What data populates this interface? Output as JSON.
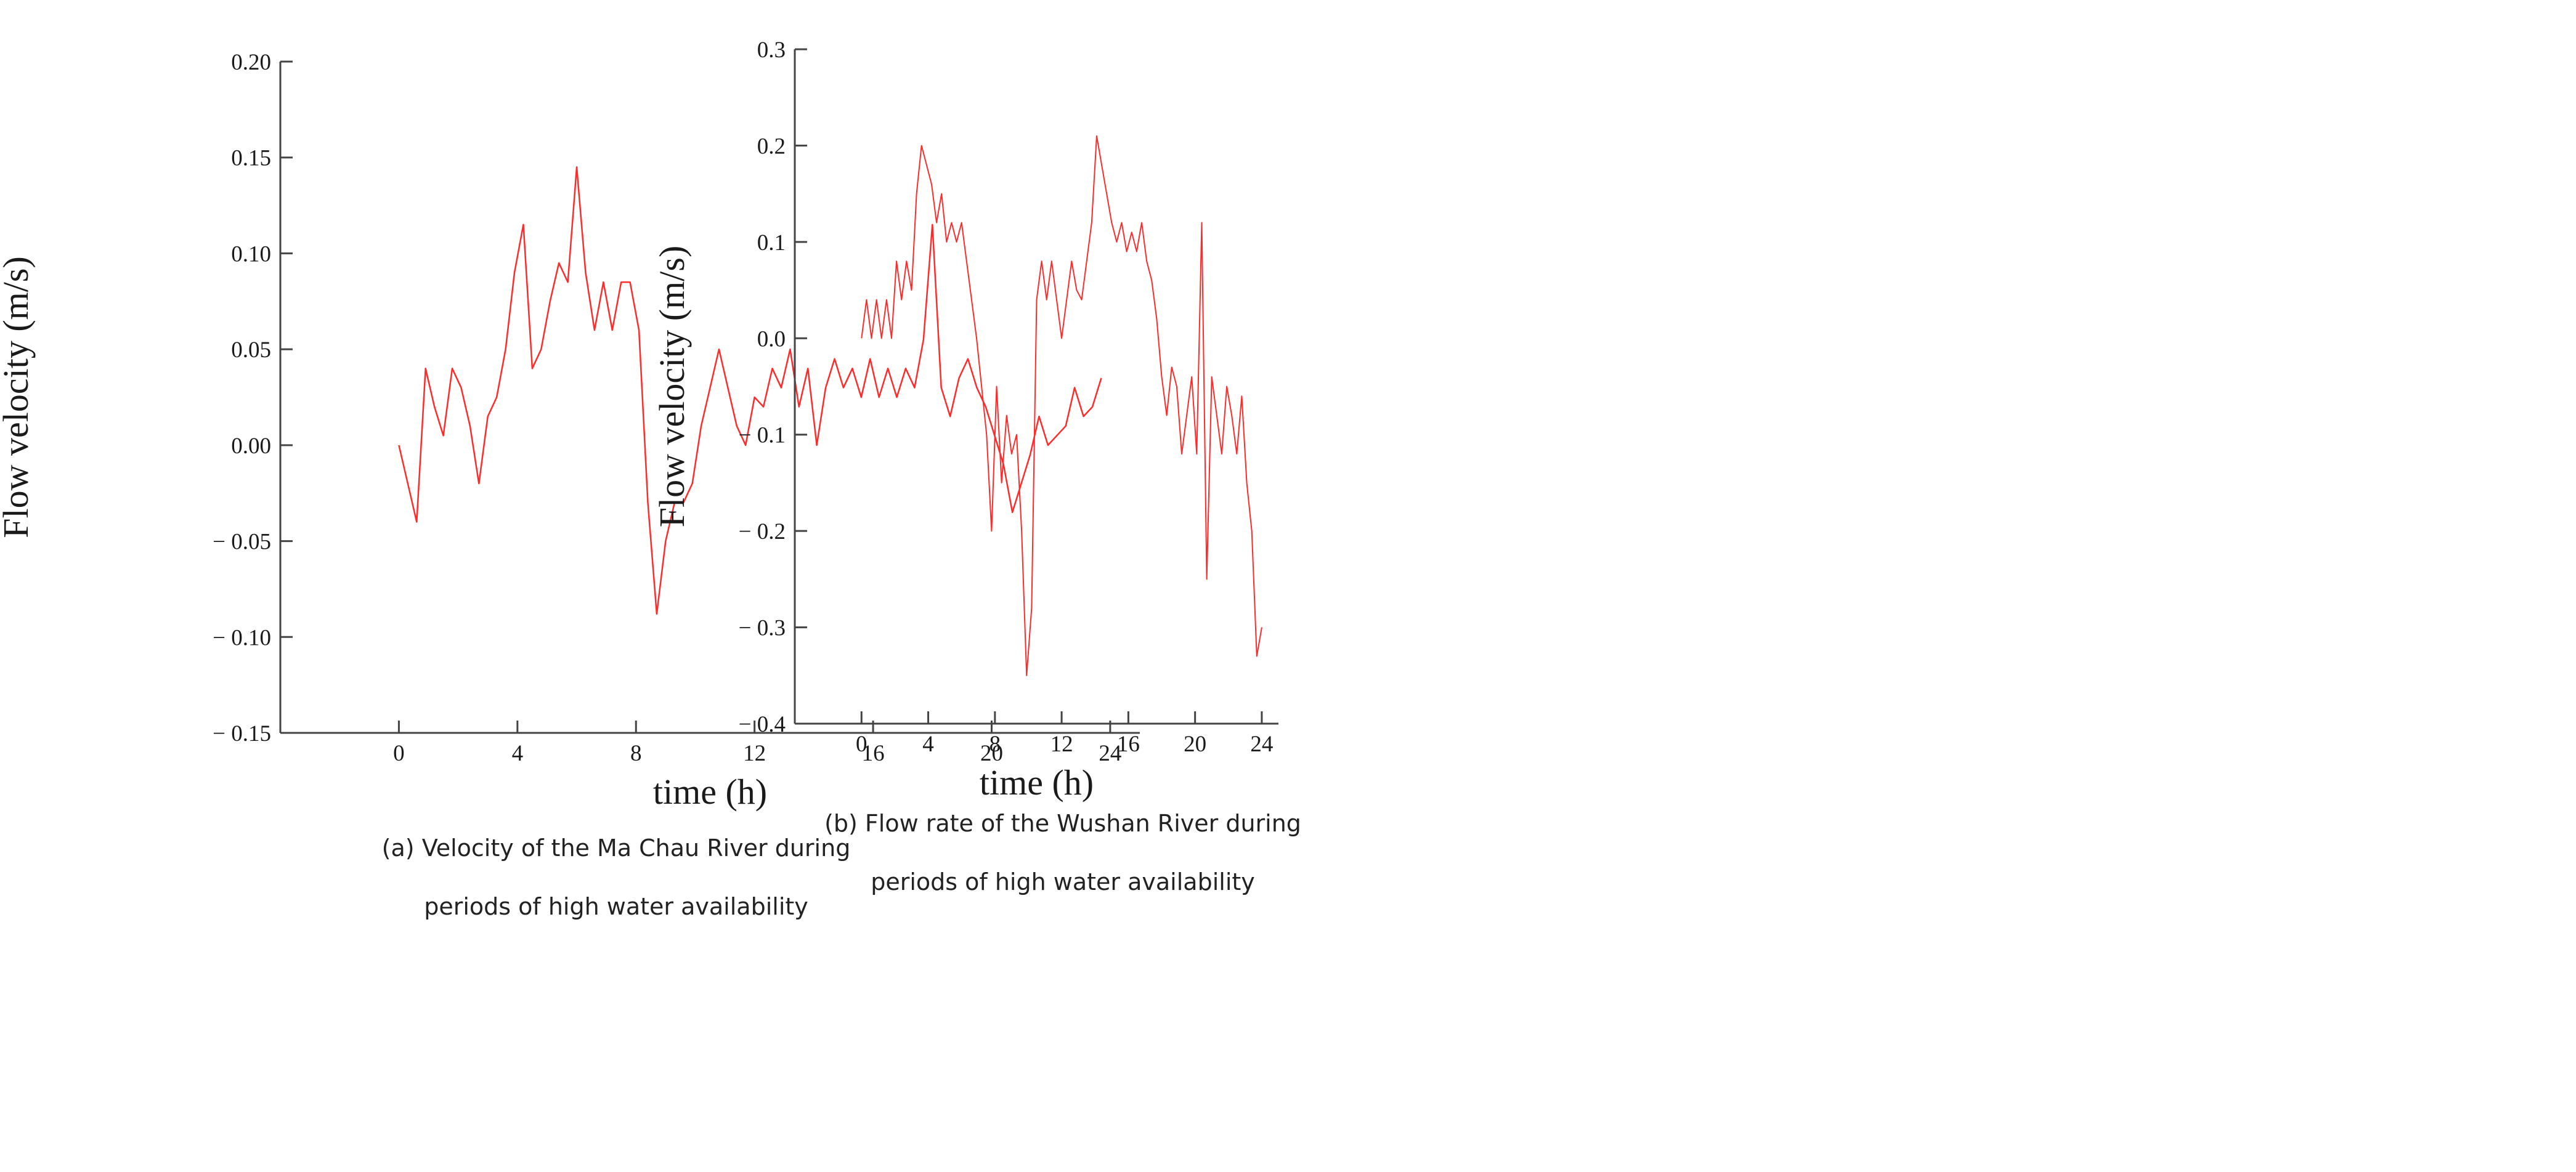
{
  "chart_data": [
    {
      "type": "line",
      "panel": "a",
      "caption_lines": [
        "(a) Velocity of the Ma Chau River during",
        "periods of high water availability"
      ],
      "xlabel": "time (h)",
      "ylabel": "Flow velocity (m/s)",
      "xlim": [
        -4,
        25
      ],
      "ylim": [
        -0.15,
        0.2
      ],
      "xticks": [
        0,
        4,
        8,
        12,
        16,
        20,
        24
      ],
      "xtick_labels": [
        "0",
        "4",
        "8",
        "12",
        "16",
        "20",
        "24"
      ],
      "yticks": [
        0.2,
        0.15,
        0.1,
        0.05,
        0.0,
        -0.05,
        -0.1,
        -0.15
      ],
      "ytick_labels": [
        "0.20",
        "0.15",
        "0.10",
        "0.05",
        "0.00",
        "− 0.05",
        "− 0.10",
        "− 0.15"
      ],
      "line_color": "#ff2a2a",
      "series": [
        {
          "name": "Ma Chau River",
          "x": [
            0,
            0.3,
            0.6,
            0.9,
            1.2,
            1.5,
            1.8,
            2.1,
            2.4,
            2.7,
            3.0,
            3.3,
            3.6,
            3.9,
            4.2,
            4.5,
            4.8,
            5.1,
            5.4,
            5.7,
            6.0,
            6.3,
            6.6,
            6.9,
            7.2,
            7.5,
            7.8,
            8.1,
            8.4,
            8.7,
            9.0,
            9.3,
            9.6,
            9.9,
            10.2,
            10.5,
            10.8,
            11.1,
            11.4,
            11.7,
            12.0,
            12.3,
            12.6,
            12.9,
            13.2,
            13.5,
            13.8,
            14.1,
            14.4,
            14.7,
            15.0,
            15.3,
            15.6,
            15.9,
            16.2,
            16.5,
            16.8,
            17.1,
            17.4,
            17.7,
            18.0,
            18.3,
            18.6,
            18.9,
            19.2,
            19.5,
            19.8,
            20.1,
            20.4,
            20.7,
            21.0,
            21.3,
            21.6,
            21.9,
            22.2,
            22.5,
            22.8,
            23.1,
            23.4,
            23.7
          ],
          "y": [
            0.0,
            -0.02,
            -0.04,
            0.04,
            0.02,
            0.005,
            0.04,
            0.03,
            0.01,
            -0.02,
            0.015,
            0.025,
            0.05,
            0.09,
            0.115,
            0.04,
            0.05,
            0.075,
            0.095,
            0.085,
            0.145,
            0.09,
            0.06,
            0.085,
            0.06,
            0.085,
            0.085,
            0.06,
            -0.03,
            -0.088,
            -0.05,
            -0.03,
            -0.03,
            -0.02,
            0.01,
            0.03,
            0.05,
            0.03,
            0.01,
            0.0,
            0.025,
            0.02,
            0.04,
            0.03,
            0.05,
            0.02,
            0.04,
            0.0,
            0.03,
            0.045,
            0.03,
            0.04,
            0.025,
            0.045,
            0.025,
            0.04,
            0.025,
            0.04,
            0.03,
            0.055,
            0.115,
            0.03,
            0.015,
            0.035,
            0.045,
            0.03,
            0.02,
            0.005,
            -0.01,
            -0.035,
            -0.02,
            -0.005,
            0.015,
            0.0,
            0.005,
            0.01,
            0.03,
            0.015,
            0.02,
            0.035
          ]
        }
      ]
    },
    {
      "type": "line",
      "panel": "b",
      "caption_lines": [
        "(b) Flow rate of the Wushan River during",
        "periods of high water availability"
      ],
      "xlabel": "time (h)",
      "ylabel": "Flow velocity (m/s)",
      "xlim": [
        -4,
        25
      ],
      "ylim": [
        -0.4,
        0.3
      ],
      "xticks": [
        0,
        4,
        8,
        12,
        16,
        20,
        24
      ],
      "xtick_labels": [
        "0",
        "4",
        "8",
        "12",
        "16",
        "20",
        "24"
      ],
      "yticks": [
        0.3,
        0.2,
        0.1,
        0.0,
        -0.1,
        -0.2,
        -0.3,
        -0.4
      ],
      "ytick_labels": [
        "0.3",
        "0.2",
        "0.1",
        "0.0",
        "− 0.1",
        "− 0.2",
        "− 0.3",
        "− 0.4"
      ],
      "line_color": "#ff2a2a",
      "series": [
        {
          "name": "Wushan River",
          "x": [
            0,
            0.3,
            0.6,
            0.9,
            1.2,
            1.5,
            1.8,
            2.1,
            2.4,
            2.7,
            3.0,
            3.3,
            3.6,
            3.9,
            4.2,
            4.5,
            4.8,
            5.1,
            5.4,
            5.7,
            6.0,
            6.3,
            6.6,
            6.9,
            7.2,
            7.5,
            7.8,
            8.1,
            8.4,
            8.7,
            9.0,
            9.3,
            9.6,
            9.9,
            10.2,
            10.5,
            10.8,
            11.1,
            11.4,
            11.7,
            12.0,
            12.3,
            12.6,
            12.9,
            13.2,
            13.5,
            13.8,
            14.1,
            14.4,
            14.7,
            15.0,
            15.3,
            15.6,
            15.9,
            16.2,
            16.5,
            16.8,
            17.1,
            17.4,
            17.7,
            18.0,
            18.3,
            18.6,
            18.9,
            19.2,
            19.5,
            19.8,
            20.1,
            20.4,
            20.7,
            21.0,
            21.3,
            21.6,
            21.9,
            22.2,
            22.5,
            22.8,
            23.1,
            23.4,
            23.7,
            24.0
          ],
          "y": [
            0.0,
            0.04,
            0.0,
            0.04,
            0.0,
            0.04,
            0.0,
            0.08,
            0.04,
            0.08,
            0.05,
            0.15,
            0.2,
            0.18,
            0.16,
            0.12,
            0.15,
            0.1,
            0.12,
            0.1,
            0.12,
            0.08,
            0.04,
            0.0,
            -0.05,
            -0.1,
            -0.2,
            -0.05,
            -0.15,
            -0.08,
            -0.12,
            -0.1,
            -0.2,
            -0.35,
            -0.28,
            0.04,
            0.08,
            0.04,
            0.08,
            0.04,
            0.0,
            0.04,
            0.08,
            0.05,
            0.04,
            0.08,
            0.12,
            0.21,
            0.18,
            0.15,
            0.12,
            0.1,
            0.12,
            0.09,
            0.11,
            0.09,
            0.12,
            0.08,
            0.06,
            0.02,
            -0.04,
            -0.08,
            -0.03,
            -0.05,
            -0.12,
            -0.08,
            -0.04,
            -0.12,
            0.12,
            -0.25,
            -0.04,
            -0.08,
            -0.12,
            -0.05,
            -0.08,
            -0.12,
            -0.06,
            -0.15,
            -0.2,
            -0.33,
            -0.3
          ]
        }
      ]
    }
  ]
}
